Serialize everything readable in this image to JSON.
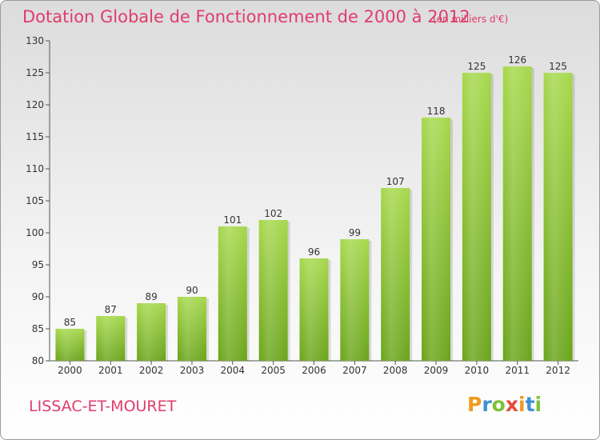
{
  "header": {
    "title": "Dotation Globale de Fonctionnement de 2000 à 2012",
    "subtitle": "(en milliers d'€)"
  },
  "footer": {
    "commune": "LISSAC-ET-MOURET",
    "logo_text": "Proxiti"
  },
  "colors": {
    "bar_light": "#a6d84c",
    "bar_dark": "#6aa41a",
    "title": "#e03c6e"
  },
  "chart_data": {
    "type": "bar",
    "categories": [
      "2000",
      "2001",
      "2002",
      "2003",
      "2004",
      "2005",
      "2006",
      "2007",
      "2008",
      "2009",
      "2010",
      "2011",
      "2012"
    ],
    "values": [
      85,
      87,
      89,
      90,
      101,
      102,
      96,
      99,
      107,
      118,
      125,
      126,
      125
    ],
    "title": "Dotation Globale de Fonctionnement de 2000 à 2012",
    "xlabel": "",
    "ylabel": "",
    "ylim": [
      80,
      130
    ],
    "yticks": [
      80,
      85,
      90,
      95,
      100,
      105,
      110,
      115,
      120,
      125,
      130
    ],
    "grid": false,
    "legend": "none"
  }
}
